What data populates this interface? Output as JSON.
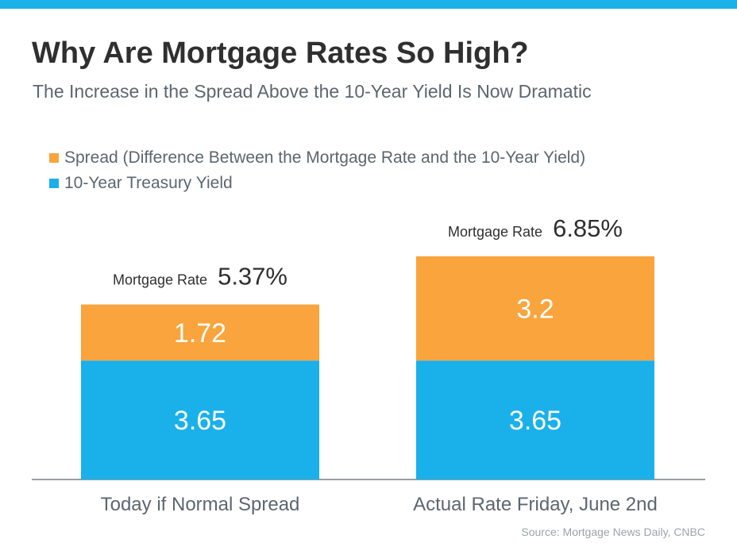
{
  "header": {
    "title": "Why Are Mortgage Rates So High?",
    "subtitle": "The Increase in the Spread Above the 10-Year Yield Is Now Dramatic"
  },
  "colors": {
    "accent_bar": "#1ab0ea",
    "spread": "#f9a43c",
    "treasury": "#1ab0ea"
  },
  "source": "Source: Mortgage News Daily, CNBC",
  "chart_data": {
    "type": "bar",
    "stacked": true,
    "title": "Why Are Mortgage Rates So High?",
    "subtitle": "The Increase in the Spread Above the 10-Year Yield Is Now Dramatic",
    "categories": [
      "Today if Normal Spread",
      "Actual Rate Friday, June 2nd"
    ],
    "series": [
      {
        "name": "10-Year Treasury Yield",
        "values": [
          3.65,
          3.65
        ],
        "color": "#1ab0ea"
      },
      {
        "name": "Spread (Difference Between the Mortgage Rate and the 10-Year Yield)",
        "values": [
          1.72,
          3.2
        ],
        "color": "#f9a43c"
      }
    ],
    "legend": [
      {
        "label": "Spread (Difference Between the Mortgage Rate and the 10-Year Yield)",
        "color": "#f9a43c"
      },
      {
        "label": "10-Year Treasury Yield",
        "color": "#1ab0ea"
      }
    ],
    "data_labels": [
      [
        "3.65",
        "1.72"
      ],
      [
        "3.65",
        "3.2"
      ]
    ],
    "totals": [
      {
        "label": "Mortgage Rate",
        "value": "5.37%"
      },
      {
        "label": "Mortgage Rate",
        "value": "6.85%"
      }
    ],
    "ylim": [
      0,
      7.6
    ],
    "grid": false,
    "legend_position": "top-left",
    "xlabel": "",
    "ylabel": ""
  }
}
